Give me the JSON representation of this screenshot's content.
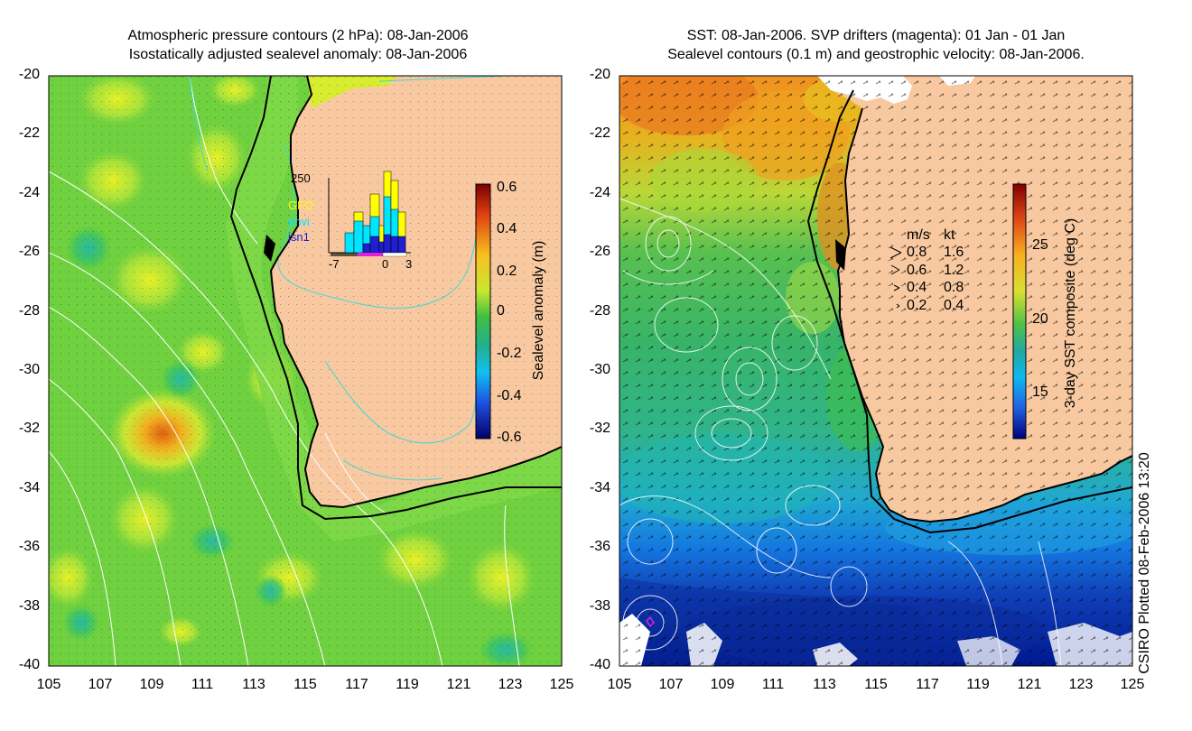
{
  "left_panel": {
    "title_line1": "Atmospheric pressure contours (2 hPa): 08-Jan-2006",
    "title_line2": "Isostatically adjusted sealevel anomaly: 08-Jan-2006",
    "colorbar": {
      "label": "Sealevel anomaly (m)",
      "ticks": [
        "0.6",
        "0.4",
        "0.2",
        "0",
        "-0.2",
        "-0.4",
        "-0.6"
      ]
    },
    "inset": {
      "ymax_label": "250",
      "x_labels": [
        "-7",
        "0",
        "3"
      ],
      "legend": [
        {
          "name": "GFO",
          "color": "#ffff00"
        },
        {
          "name": "envi",
          "color": "#00e5ff"
        },
        {
          "name": "jsn1",
          "color": "#1f1fd0"
        }
      ]
    }
  },
  "right_panel": {
    "title_line1": "SST: 08-Jan-2006. SVP drifters (magenta): 01 Jan - 01 Jan",
    "title_line2": "Sealevel contours (0.1 m) and geostrophic velocity: 08-Jan-2006.",
    "colorbar": {
      "label": "3-day SST composite (deg C)",
      "ticks": [
        "25",
        "20",
        "15"
      ]
    },
    "velocity_legend": {
      "header_ms": "m/s",
      "header_kt": "kt",
      "rows": [
        {
          "ms": "0.8",
          "kt": "1.6"
        },
        {
          "ms": "0.6",
          "kt": "1.2"
        },
        {
          "ms": "0.4",
          "kt": "0.8"
        },
        {
          "ms": "0.2",
          "kt": "0.4"
        }
      ]
    }
  },
  "axes": {
    "y_labels": [
      "-20",
      "-22",
      "-24",
      "-26",
      "-28",
      "-30",
      "-32",
      "-34",
      "-36",
      "-38",
      "-40"
    ],
    "x_labels": [
      "105",
      "107",
      "109",
      "111",
      "113",
      "115",
      "117",
      "119",
      "121",
      "123",
      "125"
    ]
  },
  "credit": "CSIRO Plotted 08-Feb-2006 13:20",
  "colors": {
    "land": "#f8c9a0",
    "contour_white": "#ffffff",
    "contour_cyan": "#3fd7d7",
    "coast": "#000000"
  }
}
